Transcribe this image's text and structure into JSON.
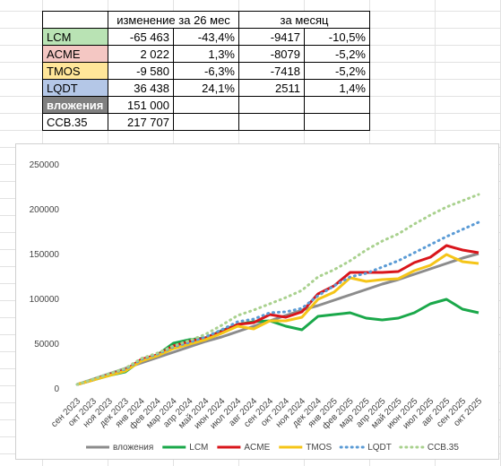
{
  "table": {
    "header": [
      "изменение за 26 мес",
      "за месяц"
    ],
    "rows": [
      [
        "LCM",
        "-65 463",
        "-43,4%",
        "-9417",
        "-10,5%"
      ],
      [
        "ACME",
        "2 022",
        "1,3%",
        "-8079",
        "-5,2%"
      ],
      [
        "TMOS",
        "-9 580",
        "-6,3%",
        "-7418",
        "-5,2%"
      ],
      [
        "LQDT",
        "36 438",
        "24,1%",
        "2511",
        "1,4%"
      ],
      [
        "вложения",
        "151 000"
      ],
      [
        "CCB.35",
        "217 707"
      ]
    ],
    "row_colors": [
      "#b9e3b4",
      "#f4c7c3",
      "#ffe699",
      "#b4c7e7",
      "#808080",
      "#ffffff"
    ]
  },
  "chart_data": {
    "type": "line",
    "categories": [
      "сен 2023",
      "окт 2023",
      "ноя 2023",
      "дек 2023",
      "янв 2024",
      "фев 2024",
      "мар 2024",
      "апр 2024",
      "май 2024",
      "июн 2024",
      "июл 2024",
      "авг 2024",
      "сен 2024",
      "окт 2024",
      "ноя 2024",
      "дек 2024",
      "янв 2025",
      "фев 2025",
      "мар 2025",
      "апр 2025",
      "май 2025",
      "июн 2025",
      "июл 2025",
      "авг 2025",
      "сен 2025",
      "окт 2025"
    ],
    "ylim": [
      0,
      250000
    ],
    "yticks": [
      0,
      50000,
      100000,
      150000,
      200000,
      250000
    ],
    "grid": false,
    "legend": "bottom",
    "series": [
      {
        "name": "вложения",
        "color": "#8c8c8c",
        "dashed": false,
        "values": [
          5000,
          11000,
          17000,
          23000,
          29000,
          35000,
          41000,
          47000,
          53000,
          58000,
          64000,
          70000,
          76000,
          82000,
          88000,
          93000,
          99000,
          105000,
          111000,
          117000,
          122000,
          128000,
          134000,
          140000,
          146000,
          151000
        ]
      },
      {
        "name": "LCM",
        "color": "#1aa84a",
        "dashed": false,
        "values": [
          5000,
          10000,
          15000,
          19000,
          32000,
          38000,
          51000,
          55000,
          57000,
          65000,
          72000,
          75000,
          76000,
          70000,
          66000,
          81000,
          83000,
          85000,
          79000,
          77000,
          79000,
          85000,
          95000,
          100000,
          89000,
          85000
        ]
      },
      {
        "name": "ACME",
        "color": "#d9151b",
        "dashed": false,
        "values": [
          5000,
          10000,
          16000,
          21000,
          33000,
          38000,
          48000,
          53000,
          57000,
          64000,
          72000,
          74000,
          83000,
          80000,
          86000,
          106000,
          115000,
          130000,
          130000,
          130000,
          131000,
          141000,
          147000,
          160000,
          155000,
          152000
        ]
      },
      {
        "name": "TMOS",
        "color": "#f5c518",
        "dashed": false,
        "values": [
          5000,
          10000,
          15000,
          20000,
          31000,
          37000,
          45000,
          50000,
          55000,
          62000,
          70000,
          67000,
          76000,
          76000,
          80000,
          100000,
          108000,
          124000,
          120000,
          122000,
          123000,
          132000,
          138000,
          150000,
          142000,
          140000
        ]
      },
      {
        "name": "LQDT",
        "color": "#5b9bd5",
        "dashed": true,
        "values": [
          5000,
          11000,
          17000,
          22000,
          33000,
          39000,
          47000,
          52000,
          58000,
          66000,
          75000,
          78000,
          85000,
          86000,
          90000,
          104000,
          115000,
          125000,
          129000,
          136000,
          143000,
          152000,
          161000,
          170000,
          178000,
          186000
        ]
      },
      {
        "name": "CCB.35",
        "color": "#a9d18e",
        "dashed": true,
        "values": [
          5000,
          11000,
          17000,
          23000,
          34000,
          40000,
          48000,
          54000,
          61000,
          71000,
          82000,
          88000,
          95000,
          102000,
          110000,
          125000,
          133000,
          143000,
          155000,
          165000,
          173000,
          184000,
          194000,
          203000,
          210000,
          217000
        ]
      }
    ]
  }
}
